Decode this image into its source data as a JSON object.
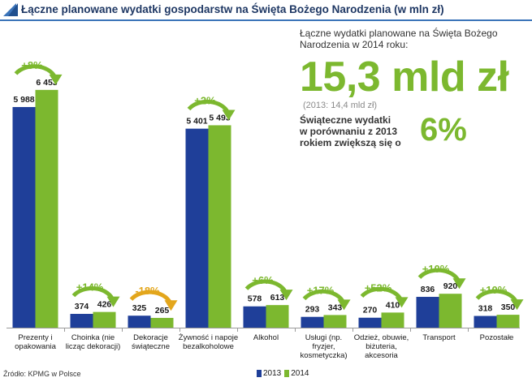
{
  "header": {
    "title": "Łączne planowane wydatki gospodarstw na Święta Bożego Narodzenia (w mln zł)"
  },
  "callout": {
    "intro_line1": "Łączne wydatki planowane na Święta Bożego",
    "intro_line2": "Narodzenia w 2014 roku:",
    "big_value": "15,3 mld zł",
    "previous": "(2013: 14,4 mld zł)",
    "compare_line1": "Świąteczne wydatki",
    "compare_line2": "w porównaniu z 2013",
    "compare_line3": "rokiem zwiększą się o",
    "percent": "6%"
  },
  "footer": {
    "source": "Źródło: KPMG w Polsce"
  },
  "colors": {
    "series_2013": "#1f3f99",
    "series_2014": "#7cb82f",
    "positive": "#7cb82f",
    "negative": "#e3a61c"
  },
  "chart_data": {
    "type": "bar",
    "title": "Łączne planowane wydatki gospodarstw na Święta Bożego Narodzenia (w mln zł)",
    "ylim": [
      0,
      7000
    ],
    "categories": [
      [
        "Prezenty i",
        "opakowania"
      ],
      [
        "Choinka (nie",
        "licząc dekoracji)"
      ],
      [
        "Dekoracje",
        "świąteczne"
      ],
      [
        "Żywność i napoje",
        "bezalkoholowe"
      ],
      [
        "Alkohol"
      ],
      [
        "Usługi (np.",
        "fryzjer,",
        "kosmetyczka)"
      ],
      [
        "Odzież, obuwie,",
        "biżuteria,",
        "akcesoria"
      ],
      [
        "Transport"
      ],
      [
        "Pozostałe"
      ]
    ],
    "series": [
      {
        "name": "2013",
        "values": [
          5988,
          374,
          325,
          5401,
          578,
          293,
          270,
          836,
          318
        ],
        "labels": [
          "5 988",
          "374",
          "325",
          "5 401",
          "578",
          "293",
          "270",
          "836",
          "318"
        ]
      },
      {
        "name": "2014",
        "values": [
          6453,
          426,
          265,
          5493,
          613,
          343,
          410,
          920,
          350
        ],
        "labels": [
          "6 453",
          "426",
          "265",
          "5 493",
          "613",
          "343",
          "410",
          "920",
          "350"
        ]
      }
    ],
    "changes": [
      "+8%",
      "+14%",
      "-18%",
      "+2%",
      "+6%",
      "+17%",
      "+52%",
      "+10%",
      "+10%"
    ],
    "legend": [
      "2013",
      "2014"
    ]
  }
}
